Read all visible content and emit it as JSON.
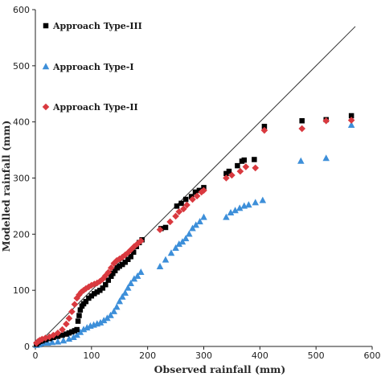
{
  "chart_data": {
    "type": "scatter",
    "xlabel": "Observed rainfall (mm)",
    "ylabel": "Modelled rainfall (mm)",
    "xlim": [
      0,
      600
    ],
    "ylim": [
      0,
      600
    ],
    "xticks": [
      0,
      100,
      200,
      300,
      400,
      500,
      600
    ],
    "yticks": [
      0,
      100,
      200,
      300,
      400,
      500,
      600
    ],
    "grid": false,
    "legend_position": "top-left",
    "reference_line": {
      "type": "1:1",
      "from": [
        0,
        0
      ],
      "to": [
        570,
        570
      ]
    },
    "series": [
      {
        "name": "Approach Type-III",
        "marker": "square",
        "color": "#000000",
        "points": [
          [
            2,
            4
          ],
          [
            5,
            7
          ],
          [
            8,
            9
          ],
          [
            12,
            10
          ],
          [
            18,
            12
          ],
          [
            25,
            14
          ],
          [
            32,
            16
          ],
          [
            40,
            18
          ],
          [
            48,
            20
          ],
          [
            55,
            22
          ],
          [
            60,
            24
          ],
          [
            65,
            26
          ],
          [
            70,
            28
          ],
          [
            74,
            30
          ],
          [
            76,
            45
          ],
          [
            78,
            55
          ],
          [
            80,
            65
          ],
          [
            83,
            72
          ],
          [
            86,
            76
          ],
          [
            90,
            80
          ],
          [
            95,
            86
          ],
          [
            100,
            90
          ],
          [
            105,
            94
          ],
          [
            110,
            97
          ],
          [
            115,
            100
          ],
          [
            120,
            104
          ],
          [
            125,
            110
          ],
          [
            130,
            118
          ],
          [
            135,
            125
          ],
          [
            138,
            130
          ],
          [
            142,
            135
          ],
          [
            146,
            140
          ],
          [
            150,
            143
          ],
          [
            155,
            146
          ],
          [
            160,
            150
          ],
          [
            165,
            155
          ],
          [
            170,
            160
          ],
          [
            175,
            168
          ],
          [
            180,
            178
          ],
          [
            185,
            185
          ],
          [
            190,
            190
          ],
          [
            224,
            210
          ],
          [
            232,
            212
          ],
          [
            252,
            250
          ],
          [
            260,
            255
          ],
          [
            268,
            262
          ],
          [
            278,
            267
          ],
          [
            285,
            275
          ],
          [
            292,
            278
          ],
          [
            300,
            283
          ],
          [
            340,
            308
          ],
          [
            345,
            312
          ],
          [
            360,
            322
          ],
          [
            368,
            330
          ],
          [
            372,
            332
          ],
          [
            390,
            333
          ],
          [
            408,
            392
          ],
          [
            475,
            402
          ],
          [
            518,
            404
          ],
          [
            563,
            411
          ]
        ]
      },
      {
        "name": "Approach Type-I",
        "marker": "triangle",
        "color": "#3d8fd9",
        "points": [
          [
            2,
            2
          ],
          [
            6,
            3
          ],
          [
            10,
            5
          ],
          [
            16,
            6
          ],
          [
            22,
            6
          ],
          [
            30,
            7
          ],
          [
            40,
            8
          ],
          [
            50,
            10
          ],
          [
            60,
            13
          ],
          [
            68,
            16
          ],
          [
            74,
            20
          ],
          [
            80,
            25
          ],
          [
            86,
            30
          ],
          [
            92,
            33
          ],
          [
            98,
            36
          ],
          [
            104,
            38
          ],
          [
            110,
            40
          ],
          [
            116,
            42
          ],
          [
            122,
            46
          ],
          [
            128,
            50
          ],
          [
            134,
            55
          ],
          [
            140,
            62
          ],
          [
            145,
            70
          ],
          [
            150,
            80
          ],
          [
            155,
            88
          ],
          [
            160,
            95
          ],
          [
            165,
            104
          ],
          [
            170,
            112
          ],
          [
            176,
            120
          ],
          [
            182,
            125
          ],
          [
            188,
            132
          ],
          [
            222,
            142
          ],
          [
            232,
            154
          ],
          [
            242,
            166
          ],
          [
            250,
            175
          ],
          [
            256,
            182
          ],
          [
            262,
            186
          ],
          [
            268,
            192
          ],
          [
            274,
            200
          ],
          [
            280,
            210
          ],
          [
            286,
            216
          ],
          [
            293,
            222
          ],
          [
            300,
            230
          ],
          [
            340,
            230
          ],
          [
            348,
            238
          ],
          [
            356,
            242
          ],
          [
            364,
            246
          ],
          [
            372,
            250
          ],
          [
            380,
            252
          ],
          [
            392,
            256
          ],
          [
            405,
            260
          ],
          [
            473,
            330
          ],
          [
            518,
            335
          ],
          [
            563,
            394
          ]
        ]
      },
      {
        "name": "Approach Type-II",
        "marker": "diamond",
        "color": "#d9393f",
        "points": [
          [
            2,
            6
          ],
          [
            5,
            9
          ],
          [
            8,
            11
          ],
          [
            12,
            13
          ],
          [
            18,
            15
          ],
          [
            25,
            17
          ],
          [
            32,
            20
          ],
          [
            40,
            24
          ],
          [
            48,
            30
          ],
          [
            55,
            40
          ],
          [
            60,
            50
          ],
          [
            65,
            62
          ],
          [
            70,
            75
          ],
          [
            74,
            86
          ],
          [
            78,
            92
          ],
          [
            82,
            97
          ],
          [
            86,
            100
          ],
          [
            90,
            103
          ],
          [
            95,
            106
          ],
          [
            100,
            109
          ],
          [
            105,
            111
          ],
          [
            110,
            113
          ],
          [
            115,
            116
          ],
          [
            120,
            120
          ],
          [
            125,
            126
          ],
          [
            130,
            132
          ],
          [
            135,
            140
          ],
          [
            140,
            148
          ],
          [
            145,
            153
          ],
          [
            150,
            156
          ],
          [
            155,
            159
          ],
          [
            160,
            163
          ],
          [
            165,
            167
          ],
          [
            170,
            172
          ],
          [
            176,
            178
          ],
          [
            182,
            183
          ],
          [
            188,
            188
          ],
          [
            222,
            208
          ],
          [
            240,
            222
          ],
          [
            250,
            232
          ],
          [
            256,
            240
          ],
          [
            264,
            245
          ],
          [
            270,
            252
          ],
          [
            280,
            262
          ],
          [
            288,
            268
          ],
          [
            296,
            275
          ],
          [
            300,
            278
          ],
          [
            340,
            300
          ],
          [
            350,
            305
          ],
          [
            365,
            312
          ],
          [
            375,
            320
          ],
          [
            392,
            318
          ],
          [
            408,
            385
          ],
          [
            475,
            388
          ],
          [
            518,
            402
          ],
          [
            563,
            403
          ]
        ]
      }
    ]
  }
}
